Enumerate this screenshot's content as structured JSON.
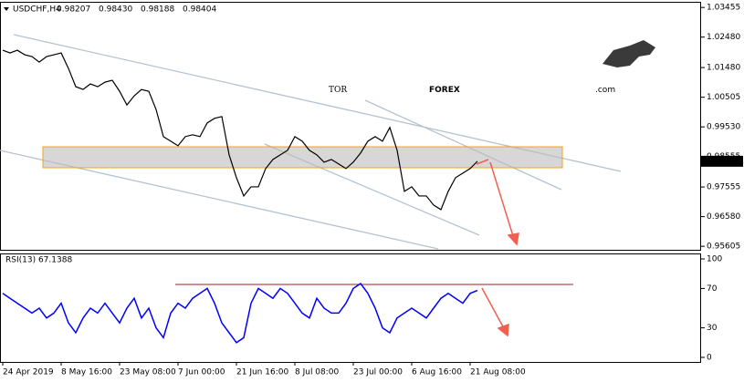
{
  "chart_data": [
    {
      "type": "line",
      "title": "USDCHF,H4",
      "quote": [
        "0.98207",
        "0.98430",
        "0.98188",
        "0.98404"
      ],
      "last_label": "0.98404",
      "categories": [
        "24 Apr 2019",
        null,
        null,
        null,
        null,
        null,
        null,
        null,
        "8 May 16:00",
        null,
        null,
        null,
        null,
        null,
        null,
        null,
        "23 May 08:00",
        null,
        null,
        null,
        null,
        null,
        null,
        null,
        "7 Jun 00:00",
        null,
        null,
        null,
        null,
        null,
        null,
        null,
        "21 Jun 16:00",
        null,
        null,
        null,
        null,
        null,
        null,
        null,
        "8 Jul 08:00",
        null,
        null,
        null,
        null,
        null,
        null,
        null,
        "23 Jul 00:00",
        null,
        null,
        null,
        null,
        null,
        null,
        null,
        "6 Aug 16:00",
        null,
        null,
        null,
        null,
        null,
        null,
        null,
        "21 Aug 08:00",
        null
      ],
      "values": [
        1.0205,
        1.0196,
        1.0205,
        1.019,
        1.0184,
        1.0166,
        1.0184,
        1.019,
        1.0196,
        1.0145,
        1.0085,
        1.0076,
        1.0094,
        1.0085,
        1.01,
        1.0106,
        1.007,
        1.0025,
        1.0055,
        1.0076,
        1.007,
        1.001,
        0.9921,
        0.9906,
        0.9891,
        0.9921,
        0.9927,
        0.9921,
        0.9966,
        0.9981,
        0.9987,
        0.9861,
        0.9786,
        0.9726,
        0.9756,
        0.9756,
        0.9816,
        0.9846,
        0.9861,
        0.9876,
        0.9921,
        0.9906,
        0.9876,
        0.9861,
        0.9837,
        0.9846,
        0.9831,
        0.9816,
        0.9837,
        0.9867,
        0.9906,
        0.9921,
        0.9906,
        0.9951,
        0.9876,
        0.9741,
        0.9756,
        0.9726,
        0.9726,
        0.9696,
        0.9681,
        0.9741,
        0.9786,
        0.9801,
        0.9816,
        0.984
      ],
      "color": "#000000",
      "ylim": [
        0.9549,
        1.0361
      ],
      "yticks": [
        {
          "value": 1.03455,
          "label": "1.03455"
        },
        {
          "value": 1.0248,
          "label": "1.02480"
        },
        {
          "value": 1.0148,
          "label": "1.01480"
        },
        {
          "value": 1.00505,
          "label": "1.00505"
        },
        {
          "value": 0.9953,
          "label": "0.99530"
        },
        {
          "value": 0.98555,
          "label": "0.98555"
        },
        {
          "value": 0.97555,
          "label": "0.97555"
        },
        {
          "value": 0.9658,
          "label": "0.96580"
        },
        {
          "value": 0.95605,
          "label": "0.95605"
        }
      ]
    },
    {
      "type": "line",
      "title": "RSI(13) 67.1388",
      "values": [
        65,
        60,
        55,
        50,
        45,
        50,
        40,
        45,
        55,
        35,
        25,
        40,
        50,
        45,
        55,
        45,
        35,
        50,
        60,
        40,
        50,
        30,
        20,
        45,
        55,
        50,
        60,
        65,
        70,
        55,
        35,
        25,
        15,
        20,
        55,
        70,
        65,
        60,
        70,
        65,
        55,
        45,
        40,
        60,
        50,
        45,
        45,
        55,
        70,
        75,
        65,
        50,
        30,
        25,
        40,
        45,
        50,
        45,
        40,
        50,
        60,
        65,
        60,
        55,
        65,
        68
      ],
      "color": "#0000ff",
      "ylim": [
        0,
        100
      ],
      "yticks": [
        100,
        70,
        30,
        0
      ]
    }
  ],
  "logo": {
    "tor": "TOR",
    "forex": "FOREX",
    "com": ".com"
  }
}
